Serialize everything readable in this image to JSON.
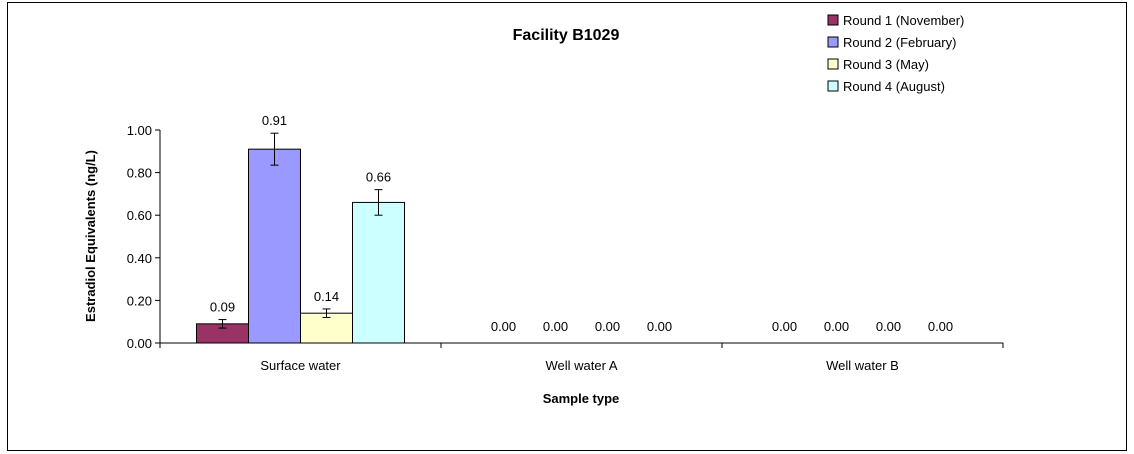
{
  "chart_data": {
    "type": "bar",
    "title": "Facility B1029",
    "xlabel": "Sample type",
    "ylabel": "Estradiol Equivalents (ng/L)",
    "categories": [
      "Surface water",
      "Well water A",
      "Well water B"
    ],
    "ylim": [
      0,
      1.0
    ],
    "ytick_labels": [
      "0.00",
      "0.20",
      "0.40",
      "0.60",
      "0.80",
      "1.00"
    ],
    "grid": false,
    "legend_position": "top-right",
    "series": [
      {
        "name": "Round 1 (November)",
        "color": "#993366",
        "values": [
          0.09,
          0.0,
          0.0
        ],
        "labels": [
          "0.09",
          "0.00",
          "0.00"
        ],
        "errors": [
          0.02,
          0,
          0
        ]
      },
      {
        "name": "Round 2 (February)",
        "color": "#9999ff",
        "values": [
          0.91,
          0.0,
          0.0
        ],
        "labels": [
          "0.91",
          "0.00",
          "0.00"
        ],
        "errors": [
          0.075,
          0,
          0
        ]
      },
      {
        "name": "Round 3 (May)",
        "color": "#ffffcc",
        "values": [
          0.14,
          0.0,
          0.0
        ],
        "labels": [
          "0.14",
          "0.00",
          "0.00"
        ],
        "errors": [
          0.02,
          0,
          0
        ]
      },
      {
        "name": "Round 4 (August)",
        "color": "#ccffff",
        "values": [
          0.66,
          0.0,
          0.0
        ],
        "labels": [
          "0.66",
          "0.00",
          "0.00"
        ],
        "errors": [
          0.06,
          0,
          0
        ]
      }
    ]
  }
}
